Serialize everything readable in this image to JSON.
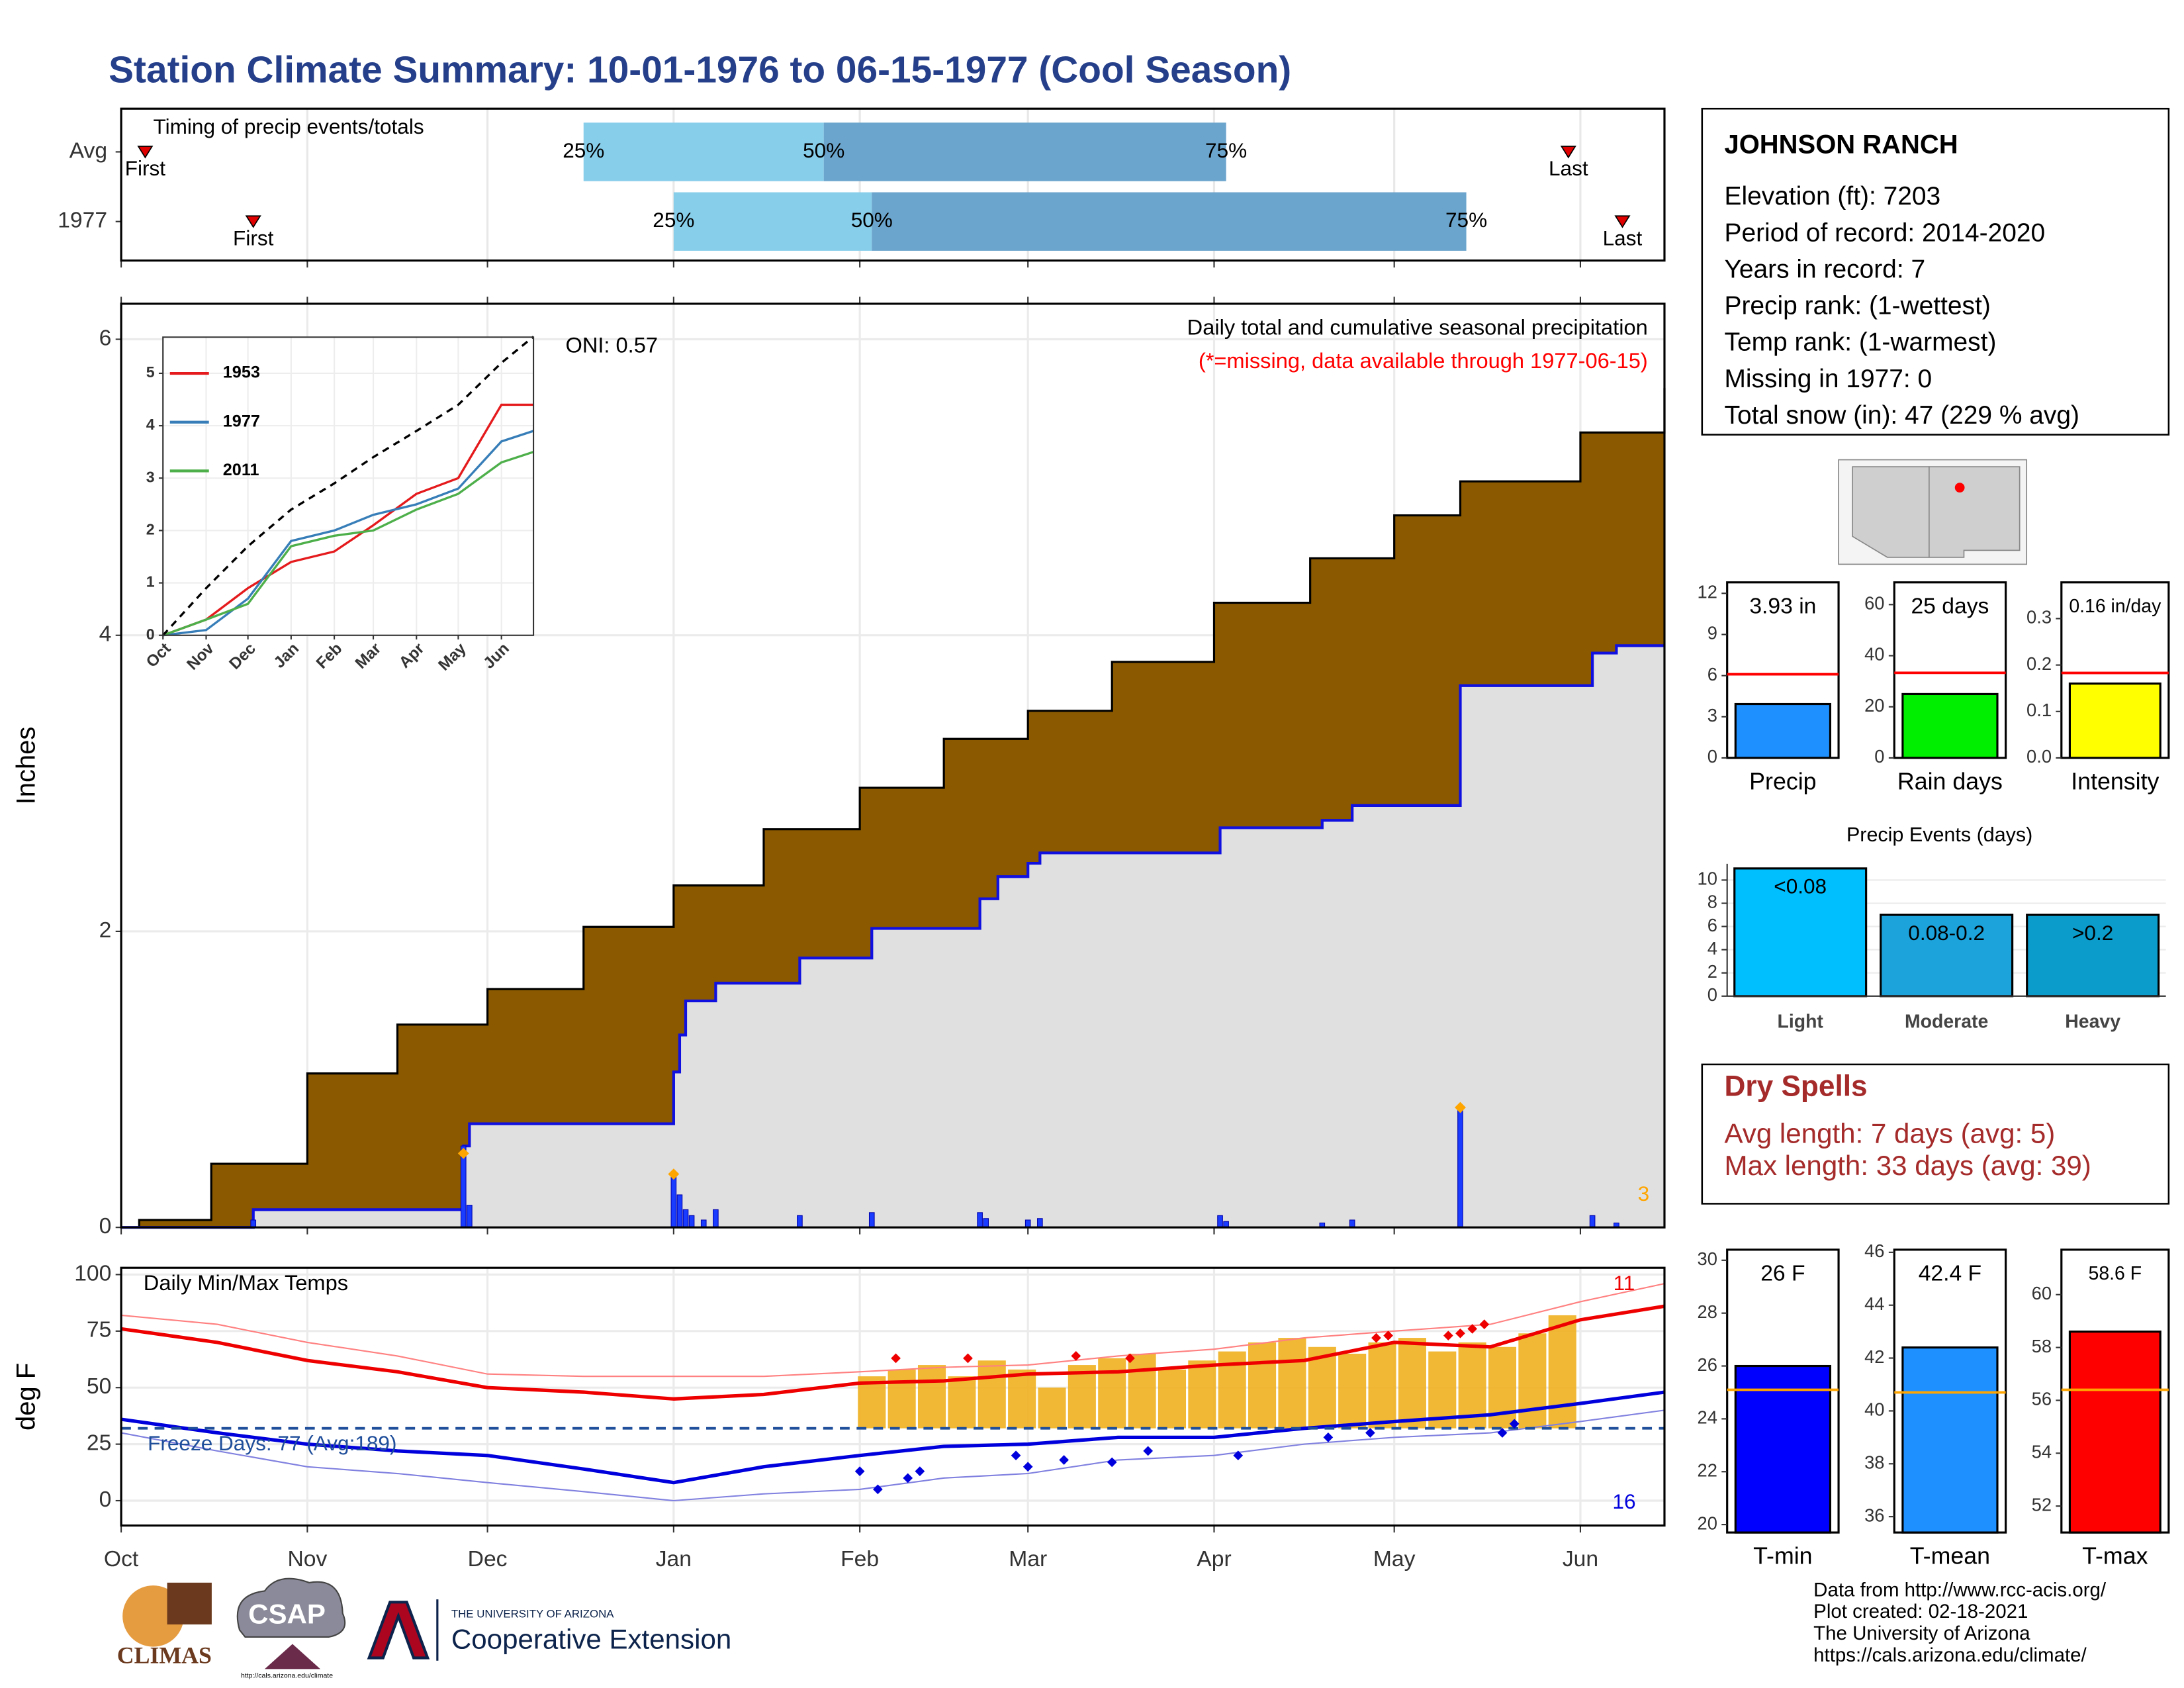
{
  "title": "Station Climate Summary: 10-01-1976 to 06-15-1977 (Cool Season)",
  "station": {
    "name": "JOHNSON RANCH",
    "lines": [
      "Elevation (ft): 7203",
      "Period of record: 2014-2020",
      "Years in record: 7",
      "Precip rank:  (1-wettest)",
      "Temp rank:  (1-warmest)",
      "Missing in 1977: 0",
      "Total snow (in): 47 (229 % avg)"
    ]
  },
  "dry_spells": {
    "title": "Dry Spells",
    "lines": [
      "Avg length: 7 days (avg: 5)",
      "Max length: 33 days (avg: 39)"
    ]
  },
  "credits": [
    "Data from http://www.rcc-acis.org/",
    "Plot created: 02-18-2021",
    "The University of Arizona",
    "https://cals.arizona.edu/climate/"
  ],
  "logos": {
    "climas": "CLIMAS",
    "csap": "CSAP",
    "csap_url": "http://cals.arizona.edu/climate",
    "university": "THE UNIVERSITY OF ARIZONA",
    "extension": "Cooperative Extension"
  },
  "chart_data": [
    {
      "type": "timing",
      "title": "Timing of precip events/totals",
      "categories": [
        "Avg",
        "1977"
      ],
      "xlim": [
        0,
        257
      ],
      "marker_labels": [
        "First",
        "25%",
        "50%",
        "75%",
        "Last"
      ],
      "rows": [
        {
          "first": 4,
          "p25": 77,
          "p50": 117,
          "p75": 184,
          "last": 241
        },
        {
          "first": 22,
          "p25": 92,
          "p50": 125,
          "p75": 224,
          "last": 250
        }
      ],
      "colors": [
        "#87ceeb",
        "#6ba4cc"
      ],
      "marker_color": "#e00000"
    },
    {
      "type": "area",
      "title": "Daily total and cumulative seasonal precipitation",
      "subtitle": "(*=missing, data available through 1977-06-15)",
      "annotation": "ONI: 0.57",
      "count_label": "3",
      "y_label": "Inches",
      "xlim": [
        0,
        257
      ],
      "ylim": [
        0,
        6.24
      ],
      "xticks": [
        0,
        31,
        61,
        92,
        123,
        151,
        182,
        212,
        243
      ],
      "yticks": [
        0,
        2,
        4,
        6
      ],
      "grid": true,
      "average": {
        "x": [
          0,
          3,
          15,
          31,
          46,
          61,
          77,
          92,
          107,
          123,
          137,
          151,
          165,
          182,
          198,
          212,
          223,
          243,
          257
        ],
        "values": [
          0,
          0.05,
          0.43,
          1.04,
          1.37,
          1.61,
          2.03,
          2.31,
          2.69,
          2.97,
          3.3,
          3.49,
          3.82,
          4.22,
          4.52,
          4.81,
          5.04,
          5.37,
          5.67
        ],
        "color": "#8b5a00"
      },
      "current": {
        "x": [
          0,
          22,
          57,
          58,
          92,
          93,
          94,
          99,
          113,
          125,
          143,
          146,
          151,
          153,
          183,
          200,
          205,
          223,
          245,
          249,
          257
        ],
        "values": [
          0,
          0.12,
          0.55,
          0.7,
          1.05,
          1.3,
          1.53,
          1.65,
          1.82,
          2.02,
          2.22,
          2.37,
          2.46,
          2.53,
          2.7,
          2.75,
          2.85,
          3.66,
          3.88,
          3.93,
          3.93
        ],
        "color": "#1010e0",
        "fill": "#e0e0e0"
      },
      "daily": {
        "x": [
          22,
          57,
          58,
          92,
          93,
          94,
          95,
          97,
          99,
          113,
          125,
          143,
          144,
          151,
          153,
          183,
          184,
          200,
          205,
          223,
          245,
          249
        ],
        "values": [
          0.05,
          0.55,
          0.15,
          0.35,
          0.22,
          0.12,
          0.08,
          0.05,
          0.12,
          0.08,
          0.1,
          0.1,
          0.06,
          0.05,
          0.06,
          0.08,
          0.04,
          0.03,
          0.05,
          0.82,
          0.08,
          0.03
        ],
        "color": "#1a3cff"
      },
      "snow": {
        "x": [
          57,
          92,
          223
        ],
        "values": [
          0.5,
          0.36,
          0.81
        ],
        "color": "#ffa500"
      }
    },
    {
      "type": "line",
      "xlim": [
        0,
        266
      ],
      "ylim": [
        0,
        5.69
      ],
      "xticks": [
        {
          "value": 0,
          "label": "Oct"
        },
        {
          "value": 31,
          "label": "Nov"
        },
        {
          "value": 61,
          "label": "Dec"
        },
        {
          "value": 92,
          "label": "Jan"
        },
        {
          "value": 123,
          "label": "Feb"
        },
        {
          "value": 151,
          "label": "Mar"
        },
        {
          "value": 182,
          "label": "Apr"
        },
        {
          "value": 212,
          "label": "May"
        },
        {
          "value": 243,
          "label": "Jun"
        }
      ],
      "yticks": [
        0,
        1,
        2,
        3,
        4,
        5
      ],
      "x": [
        0,
        31,
        61,
        92,
        123,
        151,
        182,
        212,
        243,
        266
      ],
      "series": [
        {
          "name": "1953",
          "color": "#e41a1c",
          "values": [
            0,
            0.3,
            0.9,
            1.4,
            1.6,
            2.1,
            2.7,
            3.0,
            4.4,
            4.4
          ]
        },
        {
          "name": "1977",
          "color": "#377eb8",
          "values": [
            0,
            0.1,
            0.7,
            1.8,
            2.0,
            2.3,
            2.5,
            2.8,
            3.7,
            3.9
          ]
        },
        {
          "name": "2011",
          "color": "#4daf4a",
          "values": [
            0,
            0.3,
            0.6,
            1.7,
            1.9,
            2.0,
            2.4,
            2.7,
            3.3,
            3.5
          ]
        },
        {
          "color": "#000000",
          "dashed": true,
          "values": [
            0,
            0.9,
            1.7,
            2.4,
            2.9,
            3.4,
            3.9,
            4.4,
            5.2,
            5.7
          ]
        }
      ]
    },
    {
      "type": "temperature",
      "title": "Daily Min/Max Temps",
      "y_label": "deg F",
      "annotation": "Freeze Days: 77 (Avg:189)",
      "high_count": "11",
      "low_count": "16",
      "xlim": [
        0,
        257
      ],
      "ylim": [
        -11,
        103
      ],
      "freeze_line": 32,
      "xticks": [
        {
          "value": 0,
          "label": "Oct"
        },
        {
          "value": 31,
          "label": "Nov"
        },
        {
          "value": 61,
          "label": "Dec"
        },
        {
          "value": 92,
          "label": "Jan"
        },
        {
          "value": 123,
          "label": "Feb"
        },
        {
          "value": 151,
          "label": "Mar"
        },
        {
          "value": 182,
          "label": "Apr"
        },
        {
          "value": 212,
          "label": "May"
        },
        {
          "value": 243,
          "label": "Jun"
        }
      ],
      "yticks": [
        0,
        25,
        50,
        75,
        100
      ],
      "grid": true,
      "x": [
        0,
        16,
        31,
        46,
        61,
        77,
        92,
        107,
        123,
        137,
        151,
        166,
        182,
        197,
        212,
        228,
        243,
        257
      ],
      "series": [
        {
          "color": "#ff8080",
          "width": 1,
          "values": [
            82,
            78,
            70,
            64,
            56,
            55,
            55,
            55,
            57,
            59,
            60,
            64,
            67,
            72,
            75,
            78,
            88,
            96
          ]
        },
        {
          "color": "#8080e0",
          "width": 1,
          "values": [
            30,
            22,
            15,
            12,
            8,
            4,
            0,
            3,
            5,
            10,
            12,
            18,
            20,
            25,
            28,
            30,
            35,
            40
          ]
        },
        {
          "color": "#ee0000",
          "width": 2.5,
          "values": [
            76,
            70,
            62,
            57,
            50,
            48,
            45,
            47,
            52,
            53,
            56,
            57,
            60,
            62,
            70,
            68,
            80,
            86
          ]
        },
        {
          "color": "#0000dd",
          "width": 2.5,
          "values": [
            36,
            30,
            25,
            22,
            20,
            14,
            8,
            15,
            20,
            24,
            25,
            28,
            28,
            32,
            35,
            38,
            43,
            48
          ]
        }
      ],
      "bars": {
        "color": "#f0b020",
        "x": [
          125,
          130,
          135,
          140,
          145,
          150,
          155,
          160,
          165,
          170,
          175,
          180,
          185,
          190,
          195,
          200,
          205,
          210,
          215,
          220,
          225,
          230,
          235,
          240
        ],
        "values": [
          55,
          58,
          60,
          55,
          62,
          58,
          50,
          60,
          63,
          65,
          58,
          62,
          66,
          70,
          72,
          68,
          65,
          70,
          72,
          66,
          70,
          68,
          74,
          82
        ]
      },
      "record_highs": {
        "color": "#ee0000",
        "x": [
          129,
          141,
          159,
          168,
          209,
          211,
          221,
          223,
          225,
          227
        ],
        "values": [
          63,
          63,
          64,
          63,
          72,
          73,
          73,
          74,
          76,
          78
        ]
      },
      "record_lows": {
        "color": "#0000dd",
        "x": [
          123,
          126,
          131,
          133,
          149,
          151,
          157,
          165,
          171,
          186,
          201,
          208,
          230,
          232
        ],
        "values": [
          13,
          5,
          10,
          13,
          20,
          15,
          18,
          17,
          22,
          20,
          28,
          30,
          30,
          34
        ]
      },
      "freeze_color": "#1f4e9a"
    },
    {
      "type": "bar",
      "categories": [
        "Precip"
      ],
      "values": [
        3.93
      ],
      "value_labels": [
        "3.93 in"
      ],
      "average": 6.1,
      "average_color": "#ff0000",
      "color": "#1e90ff",
      "ylim": [
        0,
        12.8
      ],
      "yticks": [
        0,
        3,
        6,
        9,
        12
      ]
    },
    {
      "type": "bar",
      "categories": [
        "Rain days"
      ],
      "values": [
        25
      ],
      "value_labels": [
        "25 days"
      ],
      "average": 33.3,
      "average_color": "#ff0000",
      "color": "#00ee00",
      "ylim": [
        0,
        68.7
      ],
      "yticks": [
        0,
        20,
        40,
        60
      ]
    },
    {
      "type": "bar",
      "categories": [
        "Intensity"
      ],
      "values": [
        0.16
      ],
      "value_labels": [
        "0.16 in/day"
      ],
      "average": 0.183,
      "average_color": "#ff0000",
      "color": "#ffff00",
      "ylim": [
        0,
        0.378
      ],
      "yticks": [
        {
          "value": 0,
          "label": "0.0"
        },
        0.1,
        0.2,
        0.3
      ]
    },
    {
      "type": "events",
      "title": "Precip Events (days)",
      "categories": [
        "Light",
        "Moderate",
        "Heavy"
      ],
      "bin_labels": [
        "<0.08",
        "0.08-0.2",
        ">0.2"
      ],
      "values": [
        11,
        7,
        7
      ],
      "colors": [
        "#00bfff",
        "#1ca3dc",
        "#0b9ccc"
      ],
      "ylim": [
        0,
        11.4
      ],
      "yticks": [
        0,
        2,
        4,
        6,
        8,
        10
      ],
      "grid": true
    },
    {
      "type": "bar",
      "categories": [
        "T-min"
      ],
      "values": [
        26
      ],
      "value_labels": [
        "26 F"
      ],
      "average": 25.1,
      "average_color": "#ffa500",
      "color": "#0000ff",
      "ylim": [
        19.7,
        30.4
      ],
      "yticks": [
        20,
        22,
        24,
        26,
        28,
        30
      ]
    },
    {
      "type": "bar",
      "categories": [
        "T-mean"
      ],
      "values": [
        42.4
      ],
      "value_labels": [
        "42.4 F"
      ],
      "average": 40.7,
      "average_color": "#ffa500",
      "color": "#1e90ff",
      "ylim": [
        35.4,
        46.1
      ],
      "yticks": [
        36,
        38,
        40,
        42,
        44,
        46
      ]
    },
    {
      "type": "bar",
      "categories": [
        "T-max"
      ],
      "values": [
        58.6
      ],
      "value_labels": [
        "58.6 F"
      ],
      "average": 56.4,
      "average_color": "#ffa500",
      "color": "#ff0000",
      "ylim": [
        51,
        61.7
      ],
      "yticks": [
        52,
        54,
        56,
        58,
        60
      ]
    }
  ]
}
